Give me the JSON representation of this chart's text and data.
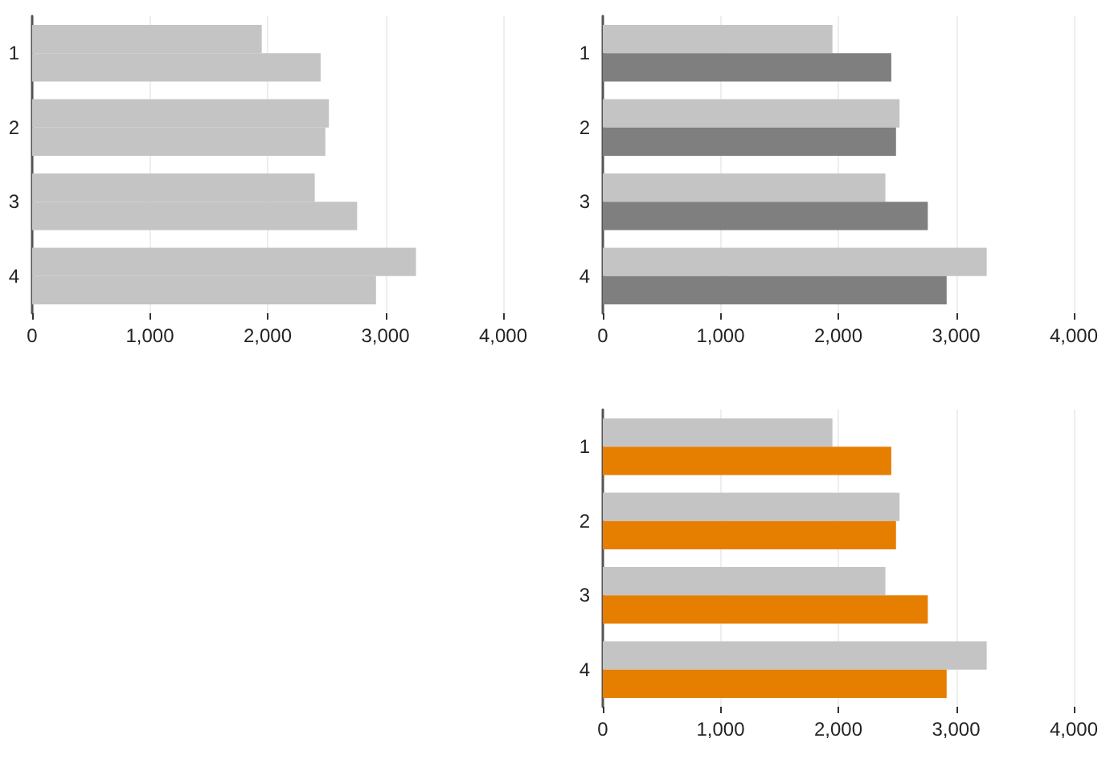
{
  "chart_data": [
    {
      "type": "bar",
      "orientation": "horizontal",
      "categories": [
        "1",
        "2",
        "3",
        "4"
      ],
      "series": [
        {
          "color": "#c4c4c4",
          "values": [
            1950,
            2520,
            2400,
            3260
          ]
        },
        {
          "color": "#c4c4c4",
          "values": [
            2450,
            2490,
            2760,
            2920
          ]
        }
      ],
      "xlim": [
        0,
        4000
      ],
      "xticks": [
        {
          "value": 0,
          "label": "0"
        },
        {
          "value": 1000,
          "label": "1,000"
        },
        {
          "value": 2000,
          "label": "2,000"
        },
        {
          "value": 3000,
          "label": "3,000"
        },
        {
          "value": 4000,
          "label": "4,000"
        }
      ],
      "grid": "x"
    },
    {
      "type": "bar",
      "orientation": "horizontal",
      "categories": [
        "1",
        "2",
        "3",
        "4"
      ],
      "series": [
        {
          "color": "#c4c4c4",
          "values": [
            1950,
            2520,
            2400,
            3260
          ]
        },
        {
          "color": "#7f7f7f",
          "values": [
            2450,
            2490,
            2760,
            2920
          ]
        }
      ],
      "xlim": [
        0,
        4000
      ],
      "xticks": [
        {
          "value": 0,
          "label": "0"
        },
        {
          "value": 1000,
          "label": "1,000"
        },
        {
          "value": 2000,
          "label": "2,000"
        },
        {
          "value": 3000,
          "label": "3,000"
        },
        {
          "value": 4000,
          "label": "4,000"
        }
      ],
      "grid": "x"
    },
    {
      "type": "bar",
      "orientation": "horizontal",
      "categories": [
        "1",
        "2",
        "3",
        "4"
      ],
      "series": [
        {
          "color": "#c4c4c4",
          "values": [
            1950,
            2520,
            2400,
            3260
          ]
        },
        {
          "color": "#e67e00",
          "values": [
            2450,
            2490,
            2760,
            2920
          ]
        }
      ],
      "xlim": [
        0,
        4000
      ],
      "xticks": [
        {
          "value": 0,
          "label": "0"
        },
        {
          "value": 1000,
          "label": "1,000"
        },
        {
          "value": 2000,
          "label": "2,000"
        },
        {
          "value": 3000,
          "label": "3,000"
        },
        {
          "value": 4000,
          "label": "4,000"
        }
      ],
      "grid": "x"
    }
  ]
}
